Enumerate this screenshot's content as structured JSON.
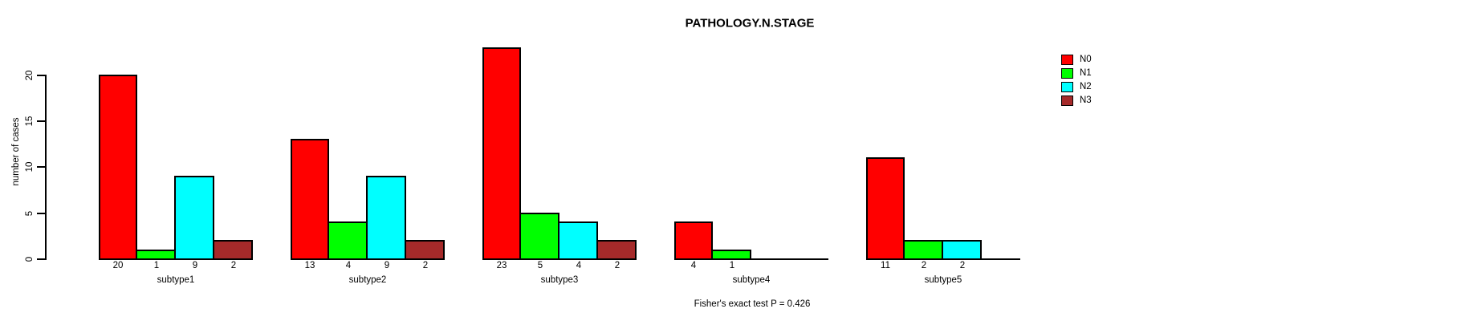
{
  "chart_data": {
    "type": "bar",
    "title": "PATHOLOGY.N.STAGE",
    "ylabel": "number of cases",
    "xlabel": "",
    "ylim": [
      0,
      20
    ],
    "yticks": [
      0,
      5,
      10,
      15,
      20
    ],
    "grid": false,
    "legend_position": "top-right",
    "categories": [
      "subtype1",
      "subtype2",
      "subtype3",
      "subtype4",
      "subtype5"
    ],
    "series": [
      {
        "name": "N0",
        "color": "#FF0000",
        "values": [
          20,
          13,
          23,
          4,
          11
        ]
      },
      {
        "name": "N1",
        "color": "#00FF00",
        "values": [
          1,
          4,
          5,
          1,
          2
        ]
      },
      {
        "name": "N2",
        "color": "#00FFFF",
        "values": [
          9,
          9,
          4,
          0,
          2
        ]
      },
      {
        "name": "N3",
        "color": "#A52A2A",
        "values": [
          2,
          2,
          2,
          0,
          0
        ]
      }
    ],
    "bar_value_labels_shown_when": "value > 0",
    "annotation": "Fisher's exact test P = 0.426",
    "axis_color": "#000000",
    "background_color": "#FFFFFF"
  }
}
